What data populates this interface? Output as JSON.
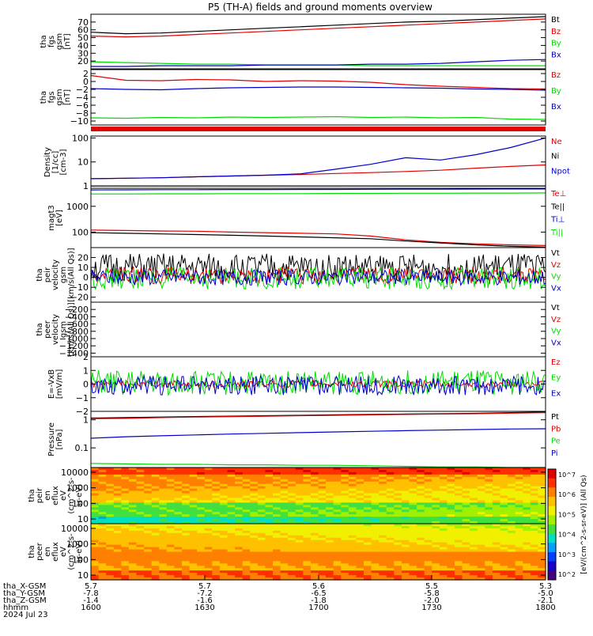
{
  "title": "P5 (TH-A) fields and ground moments overview",
  "colors": {
    "black": "#000000",
    "red": "#e00000",
    "green": "#00dd00",
    "blue": "#0000cc",
    "frame": "#000000"
  },
  "chart_data": [
    {
      "type": "line",
      "ylabel": [
        "tha",
        "fgs",
        "gsm",
        "[nT]"
      ],
      "ylim": [
        10,
        80
      ],
      "yticks": [
        20,
        30,
        40,
        50,
        60,
        70
      ],
      "series": [
        {
          "name": "Bt",
          "color": "black",
          "values": [
            57,
            55,
            56,
            58,
            60,
            62,
            64,
            66,
            68,
            70,
            71,
            73,
            75,
            77
          ]
        },
        {
          "name": "Bz",
          "color": "red",
          "values": [
            52,
            51,
            52,
            54,
            56,
            58,
            60,
            62,
            64,
            66,
            68,
            70,
            72,
            74
          ]
        },
        {
          "name": "By",
          "color": "green",
          "values": [
            19,
            18,
            17,
            16,
            16,
            15,
            15,
            15,
            14,
            14,
            14,
            14,
            14,
            14
          ]
        },
        {
          "name": "Bx",
          "color": "blue",
          "values": [
            13,
            13,
            14,
            14,
            14,
            15,
            15,
            15,
            16,
            16,
            17,
            19,
            21,
            22
          ]
        }
      ]
    },
    {
      "type": "line",
      "ylabel": [
        "tha",
        "fgs",
        "gsm",
        "[nT]"
      ],
      "ylim": [
        -11,
        3
      ],
      "yticks": [
        2,
        0,
        -2,
        -4,
        -6,
        -8,
        -10
      ],
      "series": [
        {
          "name": "Bz",
          "color": "red",
          "values": [
            1.5,
            0.3,
            0.2,
            0.5,
            0.4,
            0,
            0.2,
            0.1,
            -0.2,
            -0.8,
            -1.2,
            -1.5,
            -1.8,
            -1.9
          ]
        },
        {
          "name": "By",
          "color": "green",
          "values": [
            -9.2,
            -9.3,
            -9.1,
            -9.2,
            -9.0,
            -9.1,
            -9.0,
            -8.9,
            -9.1,
            -9.0,
            -9.2,
            -9.1,
            -9.5,
            -9.6
          ]
        },
        {
          "name": "Bx",
          "color": "blue",
          "values": [
            -1.8,
            -2.0,
            -2.1,
            -1.8,
            -1.6,
            -1.5,
            -1.4,
            -1.4,
            -1.5,
            -1.6,
            -1.7,
            -1.9,
            -2.0,
            -2.2
          ]
        }
      ]
    },
    {
      "type": "line",
      "ylabel": [
        "Density",
        "[1/cc]",
        "[cm-3]"
      ],
      "ylim": [
        0.8,
        120
      ],
      "yscale": "log",
      "yticks": [
        1,
        10,
        100
      ],
      "series": [
        {
          "name": "Ne",
          "color": "red",
          "values": [
            2,
            2.1,
            2.2,
            2.4,
            2.6,
            2.8,
            3,
            3.3,
            3.6,
            4,
            4.5,
            5.5,
            6.5,
            7.5
          ]
        },
        {
          "name": "Ni",
          "color": "black",
          "values": [
            1,
            1,
            1,
            1,
            1,
            1,
            1,
            1,
            1,
            1,
            1,
            1,
            1,
            1
          ]
        },
        {
          "name": "Npot",
          "color": "blue",
          "values": [
            2,
            2.1,
            2.2,
            2.4,
            2.6,
            2.8,
            3.2,
            5,
            8,
            15,
            12,
            20,
            40,
            100
          ]
        }
      ]
    },
    {
      "type": "line",
      "ylabel": [
        "magt3",
        "[eV]"
      ],
      "ylim": [
        25,
        5000
      ],
      "yscale": "log",
      "yticks": [
        100,
        1000
      ],
      "series": [
        {
          "name": "Te⊥",
          "color": "red",
          "values": [
            120,
            115,
            110,
            108,
            100,
            95,
            90,
            85,
            70,
            50,
            40,
            35,
            32,
            30
          ]
        },
        {
          "name": "Te||",
          "color": "black",
          "values": [
            95,
            90,
            85,
            80,
            75,
            70,
            65,
            60,
            55,
            45,
            38,
            32,
            28,
            26
          ]
        },
        {
          "name": "Ti⊥",
          "color": "blue",
          "values": [
            4300,
            4350,
            4400,
            4400,
            4450,
            4450,
            4500,
            4500,
            4550,
            4600,
            4600,
            4650,
            4700,
            4700
          ]
        },
        {
          "name": "Ti||",
          "color": "green",
          "values": [
            3000,
            3000,
            3050,
            3050,
            3100,
            3100,
            3100,
            3150,
            3150,
            3200,
            3200,
            3250,
            3250,
            3300
          ]
        }
      ]
    },
    {
      "type": "line",
      "ylabel": [
        "tha",
        "peir",
        "velocity",
        "gsm",
        "[km/s(All Qs)]"
      ],
      "ylim": [
        -25,
        30
      ],
      "yticks": [
        20,
        10,
        0,
        -10,
        -20
      ],
      "series": [
        {
          "name": "Vt",
          "color": "black",
          "values": [
            10,
            10,
            10,
            10,
            10,
            10,
            10,
            10,
            10,
            10,
            10,
            10,
            10,
            10
          ]
        },
        {
          "name": "Vz",
          "color": "red",
          "values": [
            2,
            2,
            2,
            2,
            2,
            2,
            2,
            2,
            2,
            2,
            2,
            2,
            2,
            2
          ]
        },
        {
          "name": "Vy",
          "color": "green",
          "values": [
            -1,
            -1,
            -1,
            -1,
            -1,
            -1,
            -1,
            -1,
            -1,
            -1,
            -1,
            -1,
            -1,
            -1
          ]
        },
        {
          "name": "Vx",
          "color": "blue",
          "values": [
            0,
            0,
            0,
            0,
            0,
            0,
            0,
            0,
            0,
            0,
            0,
            0,
            0,
            0
          ]
        }
      ]
    },
    {
      "type": "line",
      "ylabel": [
        "tha",
        "peer",
        "velocity",
        "gsm",
        "[km/s(All Qs)]"
      ],
      "ylim": [
        -1500,
        0
      ],
      "yticks": [
        -200,
        -400,
        -600,
        -800,
        -1000,
        -1200,
        -1400
      ],
      "series": [
        {
          "name": "Vt",
          "color": "black",
          "values": []
        },
        {
          "name": "Vz",
          "color": "red",
          "values": []
        },
        {
          "name": "Vy",
          "color": "green",
          "values": []
        },
        {
          "name": "Vx",
          "color": "blue",
          "values": []
        }
      ]
    },
    {
      "type": "line",
      "ylabel": [
        "E=-VxB",
        "[mV/m]"
      ],
      "ylim": [
        -2,
        2
      ],
      "yticks": [
        2,
        1,
        0,
        -1,
        -2
      ],
      "series": [
        {
          "name": "Ez",
          "color": "red",
          "values": [
            0,
            0,
            0,
            0,
            0,
            0,
            0,
            0,
            0,
            0,
            0,
            0,
            0,
            0
          ]
        },
        {
          "name": "Ey",
          "color": "green",
          "values": [
            0.1,
            0.1,
            0.1,
            0.1,
            0.1,
            0.1,
            0.1,
            0.1,
            0.1,
            0.1,
            0.1,
            0.1,
            0.1,
            0.1
          ]
        },
        {
          "name": "Ex",
          "color": "blue",
          "values": [
            -0.1,
            -0.1,
            -0.1,
            -0.1,
            -0.1,
            -0.1,
            -0.1,
            -0.1,
            -0.1,
            -0.1,
            -0.1,
            -0.1,
            -0.1,
            -0.1
          ]
        }
      ]
    },
    {
      "type": "line",
      "ylabel": [
        "Pressure",
        "[nPa]"
      ],
      "ylim": [
        0.02,
        2
      ],
      "yscale": "log",
      "yticks": [
        1.0,
        0.1
      ],
      "series": [
        {
          "name": "Pt",
          "color": "black",
          "values": [
            1.15,
            1.2,
            1.25,
            1.3,
            1.35,
            1.4,
            1.45,
            1.5,
            1.55,
            1.6,
            1.65,
            1.7,
            1.8,
            1.9
          ]
        },
        {
          "name": "Pb",
          "color": "red",
          "values": [
            1.1,
            1.12,
            1.2,
            1.25,
            1.3,
            1.35,
            1.4,
            1.45,
            1.5,
            1.55,
            1.6,
            1.65,
            1.72,
            1.8
          ]
        },
        {
          "name": "Pe",
          "color": "green",
          "values": [
            0.028,
            0.027,
            0.026,
            0.026,
            0.025,
            0.025,
            0.024,
            0.024,
            0.023,
            0.022,
            0.021,
            0.021,
            0.02,
            0.02
          ]
        },
        {
          "name": "Pi",
          "color": "blue",
          "values": [
            0.22,
            0.25,
            0.27,
            0.29,
            0.31,
            0.33,
            0.35,
            0.37,
            0.39,
            0.41,
            0.43,
            0.45,
            0.47,
            0.48
          ]
        }
      ]
    },
    {
      "type": "heatmap",
      "ylabel": [
        "tha",
        "peir",
        "en",
        "eflux",
        "eV",
        "(cm^2-s-",
        "sr-eV)"
      ],
      "ylim": [
        5,
        20000
      ],
      "yscale": "log",
      "yticks": [
        10,
        100,
        1000,
        10000
      ]
    },
    {
      "type": "heatmap",
      "ylabel": [
        "tha",
        "peer",
        "en",
        "eflux",
        "eV",
        "(cm^2-s-",
        "sr-eV)"
      ],
      "ylim": [
        5,
        20000
      ],
      "yscale": "log",
      "yticks": [
        10,
        100,
        1000,
        10000
      ]
    }
  ],
  "colorbar": {
    "label": "[eV/(cm^2-s-sr-eV)] (All Qs)",
    "ticks": [
      "10^7",
      "10^6",
      "10^5",
      "10^4",
      "10^3",
      "10^2"
    ]
  },
  "axis_footer": {
    "row_labels": [
      "tha_X-GSM",
      "tha_Y-GSM",
      "tha_Z-GSM",
      "hhmm",
      "2024 Jul 23"
    ],
    "columns": [
      {
        "x": "5.7",
        "y": "-7.8",
        "z": "-1.4",
        "t": "1600"
      },
      {
        "x": "5.7",
        "y": "-7.2",
        "z": "-1.6",
        "t": "1630"
      },
      {
        "x": "5.6",
        "y": "-6.5",
        "z": "-1.8",
        "t": "1700"
      },
      {
        "x": "5.5",
        "y": "-5.8",
        "z": "-2.0",
        "t": "1730"
      },
      {
        "x": "5.3",
        "y": "-5.0",
        "z": "-2.1",
        "t": "1800"
      }
    ]
  }
}
